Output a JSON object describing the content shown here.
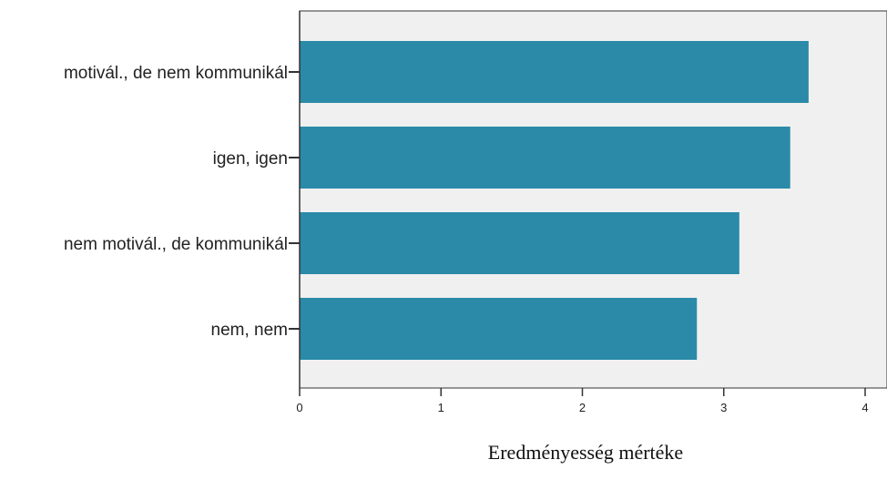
{
  "chart_data": {
    "type": "bar",
    "orientation": "horizontal",
    "categories": [
      "motivál., de nem kommunikál",
      "igen, igen",
      "nem motivál., de kommunikál",
      "nem, nem"
    ],
    "values": [
      3.6,
      3.47,
      3.11,
      2.81
    ],
    "title": "",
    "xlabel": "Eredményesség mértéke",
    "ylabel": "",
    "xlim": [
      0,
      4.2
    ],
    "x_ticks": [
      "0",
      "1",
      "2",
      "3",
      "4"
    ],
    "grid": false,
    "colors": {
      "bar": "#2a8aa8",
      "plot_background": "#f0f0f0",
      "axis": "#333333"
    }
  }
}
